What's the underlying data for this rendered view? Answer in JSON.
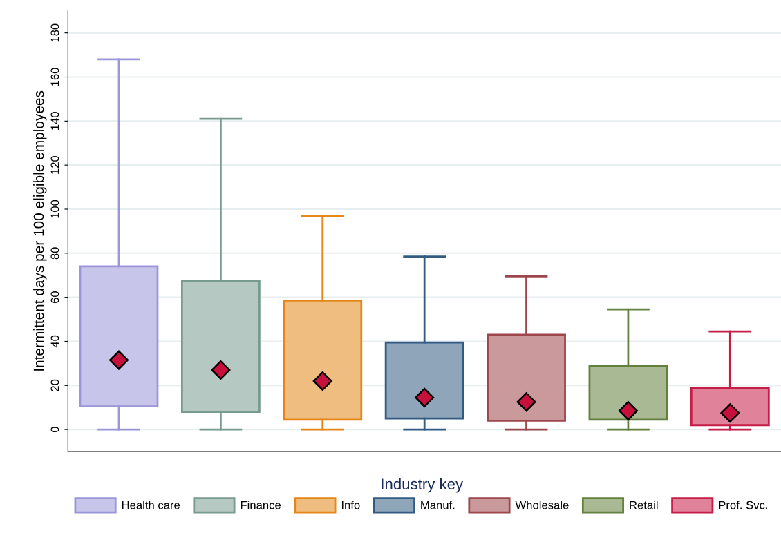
{
  "chart_data": {
    "type": "box",
    "ylabel": "Intermittent days per 100 eligible employees",
    "legend_title": "Industry key",
    "categories": [
      null,
      null,
      null,
      null,
      null,
      null,
      null
    ],
    "series": [
      {
        "name": "Health care",
        "color": "#c8c5ea",
        "boxes": [
          {
            "low": 0,
            "q1": 10.5,
            "median": 31.5,
            "q3": 74,
            "high": 168
          },
          null,
          null,
          null,
          null,
          null,
          null
        ]
      },
      {
        "name": "Finance",
        "color": "#b5c8c2",
        "boxes": [
          null,
          {
            "low": 0,
            "q1": 8,
            "median": 27,
            "q3": 67.5,
            "high": 141
          },
          null,
          null,
          null,
          null,
          null
        ]
      },
      {
        "name": "Info",
        "color": "#f0bd80",
        "boxes": [
          null,
          null,
          {
            "low": 0,
            "q1": 4.5,
            "median": 22,
            "q3": 58.5,
            "high": 97
          },
          null,
          null,
          null,
          null
        ]
      },
      {
        "name": "Manuf.",
        "color": "#8ea5ba",
        "boxes": [
          null,
          null,
          null,
          {
            "low": 0,
            "q1": 5,
            "median": 14.5,
            "q3": 39.5,
            "high": 78.5
          },
          null,
          null,
          null
        ]
      },
      {
        "name": "Wholesale",
        "color": "#c9999c",
        "boxes": [
          null,
          null,
          null,
          null,
          {
            "low": 0,
            "q1": 4,
            "median": 12.5,
            "q3": 43,
            "high": 69.5
          },
          null,
          null
        ]
      },
      {
        "name": "Retail",
        "color": "#a9b994",
        "boxes": [
          null,
          null,
          null,
          null,
          null,
          {
            "low": 0,
            "q1": 4.5,
            "median": 8.5,
            "q3": 29,
            "high": 54.5
          },
          null
        ]
      },
      {
        "name": "Prof. Svc.",
        "color": "#e0829a",
        "boxes": [
          null,
          null,
          null,
          null,
          null,
          null,
          {
            "low": 0,
            "q1": 2,
            "median": 7.5,
            "q3": 19,
            "high": 44.5
          }
        ]
      }
    ],
    "marker": "diamond",
    "ylim": [
      -10,
      190
    ],
    "yticks": [
      0,
      20,
      40,
      60,
      80,
      100,
      120,
      140,
      160,
      180
    ],
    "grid": "y",
    "legend": "bottom",
    "tick_labels": "y"
  }
}
